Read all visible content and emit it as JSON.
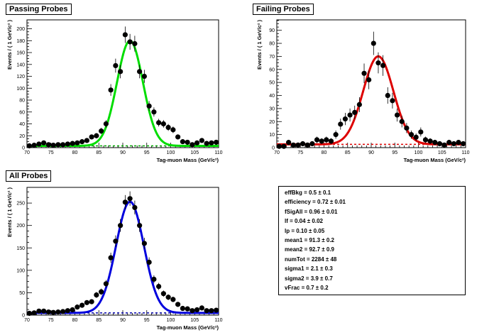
{
  "chart_data": [
    {
      "type": "scatter",
      "title": "Passing Probes",
      "xlabel": "Tag-muon Mass (GeV/c²)",
      "ylabel": "Events / ( 1 GeV/c² )",
      "xlim": [
        70,
        110
      ],
      "ylim": [
        0,
        215
      ],
      "xticks": [
        70,
        75,
        80,
        85,
        90,
        95,
        100,
        105,
        110
      ],
      "yticks": [
        0,
        20,
        40,
        60,
        80,
        100,
        120,
        140,
        160,
        180,
        200
      ],
      "fit_color": "#00dd00",
      "background_color": "#00aa00",
      "x": [
        70.5,
        71.5,
        72.5,
        73.5,
        74.5,
        75.5,
        76.5,
        77.5,
        78.5,
        79.5,
        80.5,
        81.5,
        82.5,
        83.5,
        84.5,
        85.5,
        86.5,
        87.5,
        88.5,
        89.5,
        90.5,
        91.5,
        92.5,
        93.5,
        94.5,
        95.5,
        96.5,
        97.5,
        98.5,
        99.5,
        100.5,
        101.5,
        102.5,
        103.5,
        104.5,
        105.5,
        106.5,
        107.5,
        108.5,
        109.5
      ],
      "y": [
        3,
        4,
        6,
        8,
        5,
        4,
        5,
        5,
        6,
        7,
        8,
        10,
        12,
        18,
        20,
        28,
        40,
        97,
        138,
        128,
        190,
        178,
        175,
        128,
        120,
        70,
        60,
        42,
        40,
        34,
        30,
        18,
        10,
        9,
        5,
        8,
        12,
        7,
        8,
        9
      ],
      "fit": {
        "peak": 180,
        "mean": 91.5,
        "sigma": 2.7,
        "background": 3
      },
      "background_level": 3
    },
    {
      "type": "scatter",
      "title": "Failing Probes",
      "xlabel": "Tag-muon Mass (GeV/c²)",
      "ylabel": "Events / ( 1 GeV/c² )",
      "xlim": [
        70,
        110
      ],
      "ylim": [
        0,
        98
      ],
      "xticks": [
        70,
        75,
        80,
        85,
        90,
        95,
        100,
        105,
        110
      ],
      "yticks": [
        0,
        10,
        20,
        30,
        40,
        50,
        60,
        70,
        80,
        90
      ],
      "fit_color": "#dd0000",
      "background_color": "#dd0000",
      "x": [
        70.5,
        71.5,
        72.5,
        73.5,
        74.5,
        75.5,
        76.5,
        77.5,
        78.5,
        79.5,
        80.5,
        81.5,
        82.5,
        83.5,
        84.5,
        85.5,
        86.5,
        87.5,
        88.5,
        89.5,
        90.5,
        91.5,
        92.5,
        93.5,
        94.5,
        95.5,
        96.5,
        97.5,
        98.5,
        99.5,
        100.5,
        101.5,
        102.5,
        103.5,
        104.5,
        105.5,
        106.5,
        107.5,
        108.5,
        109.5
      ],
      "y": [
        1,
        1,
        4,
        2,
        2,
        3,
        2,
        3,
        6,
        5,
        6,
        5,
        10,
        18,
        22,
        25,
        27,
        33,
        57,
        52,
        80,
        65,
        63,
        40,
        36,
        25,
        20,
        15,
        10,
        8,
        12,
        6,
        5,
        4,
        3,
        2,
        4,
        3,
        4,
        3
      ],
      "fit": {
        "peak": 70,
        "mean": 91.5,
        "sigma": 3.2,
        "background": 2.5
      },
      "background_level": 2.5
    },
    {
      "type": "scatter",
      "title": "All Probes",
      "xlabel": "Tag-muon Mass (GeV/c²)",
      "ylabel": "Events / ( 1 GeV/c² )",
      "xlim": [
        70,
        110
      ],
      "ylim": [
        0,
        285
      ],
      "xticks": [
        70,
        75,
        80,
        85,
        90,
        95,
        100,
        105,
        110
      ],
      "yticks": [
        0,
        50,
        100,
        150,
        200,
        250
      ],
      "fit_color": "#0000dd",
      "background_color": "#0000aa",
      "x": [
        70.5,
        71.5,
        72.5,
        73.5,
        74.5,
        75.5,
        76.5,
        77.5,
        78.5,
        79.5,
        80.5,
        81.5,
        82.5,
        83.5,
        84.5,
        85.5,
        86.5,
        87.5,
        88.5,
        89.5,
        90.5,
        91.5,
        92.5,
        93.5,
        94.5,
        95.5,
        96.5,
        97.5,
        98.5,
        99.5,
        100.5,
        101.5,
        102.5,
        103.5,
        104.5,
        105.5,
        106.5,
        107.5,
        108.5,
        109.5
      ],
      "y": [
        4,
        5,
        9,
        9,
        7,
        6,
        7,
        8,
        10,
        12,
        18,
        22,
        28,
        30,
        45,
        52,
        70,
        128,
        165,
        200,
        252,
        260,
        240,
        200,
        160,
        118,
        80,
        64,
        48,
        40,
        35,
        24,
        15,
        14,
        10,
        12,
        16,
        10,
        10,
        11
      ],
      "fit": {
        "peak": 253,
        "mean": 91.5,
        "sigma": 2.9,
        "background": 5
      },
      "background_level": 5
    }
  ],
  "parameters": [
    {
      "name": "effBkg",
      "value": "0.5",
      "error": "0.1"
    },
    {
      "name": "efficiency",
      "value": "0.72",
      "error": "0.01"
    },
    {
      "name": "fSigAll",
      "value": "0.96",
      "error": "0.01"
    },
    {
      "name": "lf",
      "value": "0.04",
      "error": "0.02"
    },
    {
      "name": "lp",
      "value": "0.10",
      "error": "0.05"
    },
    {
      "name": "mean1",
      "value": "91.3",
      "error": "0.2"
    },
    {
      "name": "mean2",
      "value": "92.7",
      "error": "0.9"
    },
    {
      "name": "numTot",
      "value": "2284",
      "error": "48"
    },
    {
      "name": "sigma1",
      "value": "2.1",
      "error": "0.3"
    },
    {
      "name": "sigma2",
      "value": "3.9",
      "error": "0.7"
    },
    {
      "name": "vFrac",
      "value": "0.7",
      "error": "0.2"
    }
  ]
}
